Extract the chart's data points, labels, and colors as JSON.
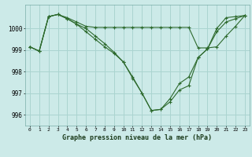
{
  "bg_color": "#cceae8",
  "grid_color": "#aad4d0",
  "line_color": "#2d6a2d",
  "marker_color": "#2d6a2d",
  "title": "Graphe pression niveau de la mer (hPa)",
  "xlim": [
    -0.5,
    23.5
  ],
  "ylim": [
    995.5,
    1001.1
  ],
  "yticks": [
    996,
    997,
    998,
    999,
    1000
  ],
  "xticks": [
    0,
    1,
    2,
    3,
    4,
    5,
    6,
    7,
    8,
    9,
    10,
    11,
    12,
    13,
    14,
    15,
    16,
    17,
    18,
    19,
    20,
    21,
    22,
    23
  ],
  "series": [
    {
      "x": [
        0,
        1,
        2,
        3,
        4,
        5,
        6,
        7,
        8,
        9,
        10,
        11,
        12,
        13,
        14,
        15,
        16,
        17,
        18,
        19,
        20,
        21,
        22,
        23
      ],
      "y": [
        999.15,
        998.95,
        1000.55,
        1000.65,
        1000.45,
        1000.2,
        1000.0,
        999.65,
        999.3,
        998.9,
        998.45,
        997.75,
        997.0,
        996.2,
        996.25,
        996.75,
        997.45,
        997.75,
        998.65,
        999.05,
        999.85,
        1000.3,
        1000.45,
        1000.6
      ]
    },
    {
      "x": [
        0,
        1,
        2,
        3,
        4,
        5,
        6,
        7,
        8,
        9,
        10,
        11,
        12,
        13,
        14,
        15,
        16,
        17,
        18,
        19,
        20,
        21,
        22,
        23
      ],
      "y": [
        999.15,
        998.95,
        1000.55,
        1000.65,
        1000.5,
        1000.3,
        1000.1,
        1000.05,
        1000.05,
        1000.05,
        1000.05,
        1000.05,
        1000.05,
        1000.05,
        1000.05,
        1000.05,
        1000.05,
        1000.05,
        999.1,
        999.1,
        999.15,
        999.65,
        1000.1,
        1000.6
      ]
    },
    {
      "x": [
        0,
        1,
        2,
        3,
        4,
        5,
        6,
        7,
        8,
        9,
        10,
        11,
        12,
        13,
        14,
        15,
        16,
        17,
        18,
        19,
        20,
        21,
        22,
        23
      ],
      "y": [
        999.15,
        998.95,
        1000.55,
        1000.65,
        1000.45,
        1000.2,
        999.85,
        999.5,
        999.15,
        998.85,
        998.45,
        997.7,
        997.0,
        996.2,
        996.25,
        996.6,
        997.15,
        997.35,
        998.65,
        999.05,
        1000.0,
        1000.5,
        1000.55,
        1000.6
      ]
    }
  ]
}
